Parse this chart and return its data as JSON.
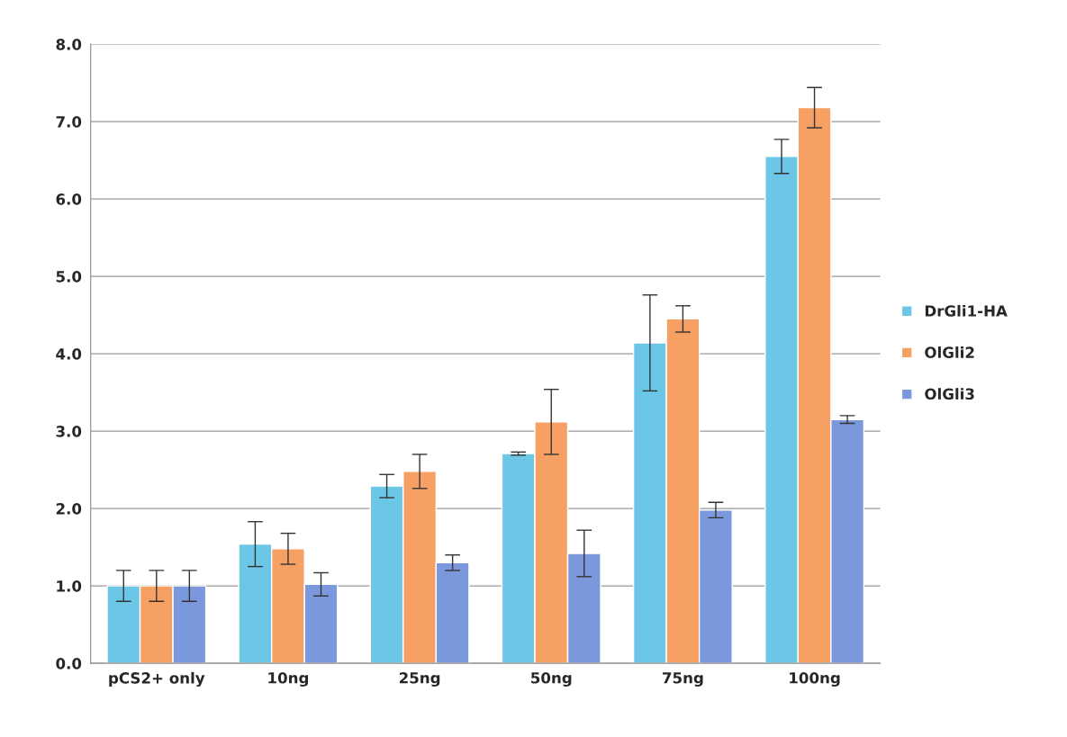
{
  "chart_data": {
    "type": "bar",
    "categories": [
      "pCS2+ only",
      "10ng",
      "25ng",
      "50ng",
      "75ng",
      "100ng"
    ],
    "series": [
      {
        "name": "DrGli1-HA",
        "color": "#6cc7e6",
        "values": [
          1.0,
          1.54,
          2.29,
          2.71,
          4.14,
          6.55
        ],
        "errors": [
          0.2,
          0.29,
          0.15,
          0.02,
          0.62,
          0.22
        ]
      },
      {
        "name": "OlGli2",
        "color": "#f7a064",
        "values": [
          1.0,
          1.48,
          2.48,
          3.12,
          4.45,
          7.18
        ],
        "errors": [
          0.2,
          0.2,
          0.22,
          0.42,
          0.17,
          0.26
        ]
      },
      {
        "name": "OlGli3",
        "color": "#7b98dc",
        "values": [
          1.0,
          1.02,
          1.3,
          1.42,
          1.98,
          3.15
        ],
        "errors": [
          0.2,
          0.15,
          0.1,
          0.3,
          0.1,
          0.05
        ]
      }
    ],
    "ylim": [
      0,
      8
    ],
    "yticks": [
      {
        "value": 0,
        "label": "0.0"
      },
      {
        "value": 1,
        "label": "1.0"
      },
      {
        "value": 2,
        "label": "2.0"
      },
      {
        "value": 3,
        "label": "3.0"
      },
      {
        "value": 4,
        "label": "4.0"
      },
      {
        "value": 5,
        "label": "5.0"
      },
      {
        "value": 6,
        "label": "6.0"
      },
      {
        "value": 7,
        "label": "7.0"
      },
      {
        "value": 8,
        "label": "8.0"
      }
    ],
    "grid": "y",
    "legend": "right"
  }
}
